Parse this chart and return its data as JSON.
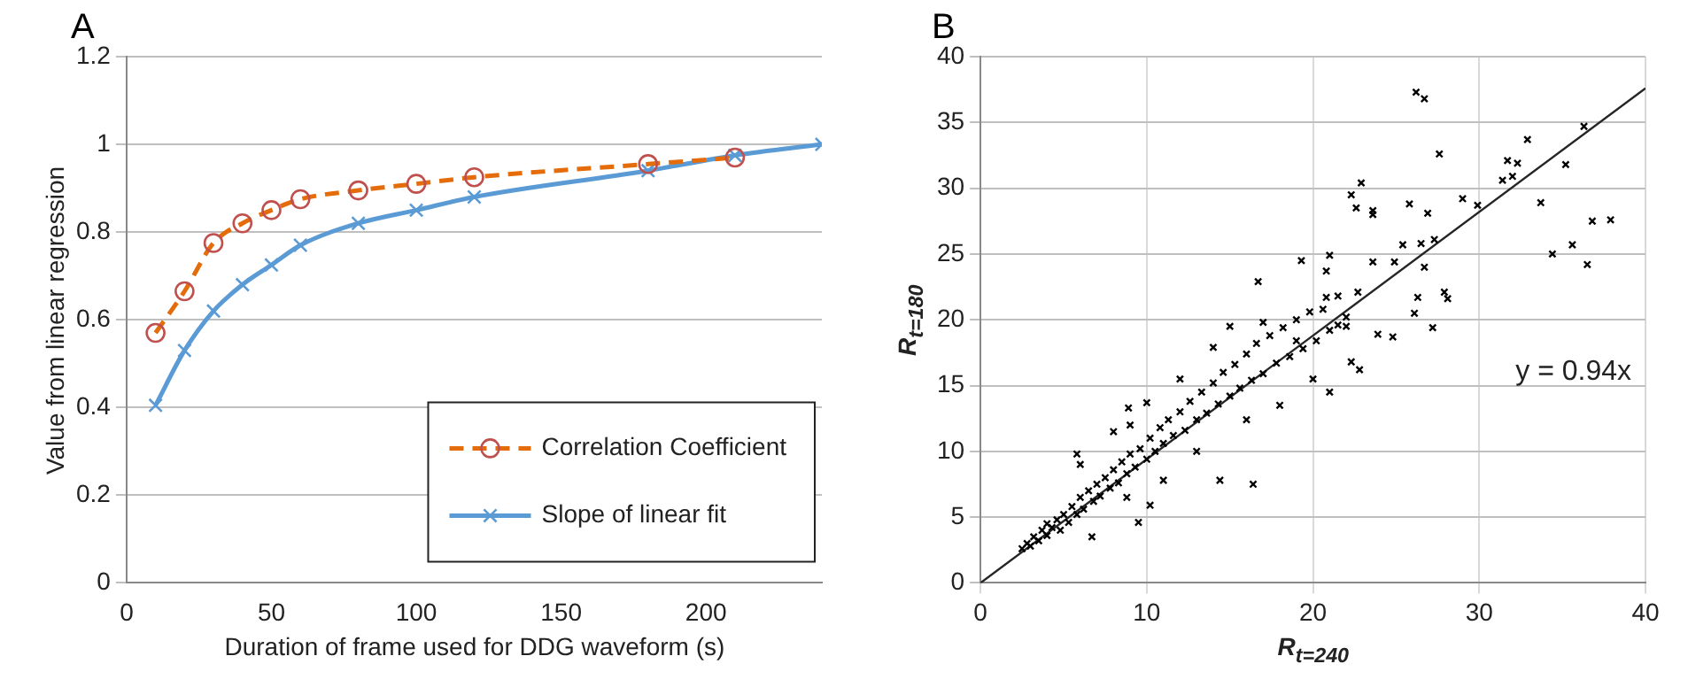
{
  "chart_data": [
    {
      "type": "line",
      "title": "A",
      "xlabel": "Duration of frame used for DDG waveform (s)",
      "ylabel": "Value from linear regression",
      "xlim": [
        0,
        240
      ],
      "xticks": [
        0,
        50,
        100,
        150,
        200
      ],
      "ylim": [
        0,
        1.2
      ],
      "yticks": [
        0,
        0.2,
        0.4,
        0.6,
        0.8,
        1,
        1.2
      ],
      "grid": "y",
      "legend": "bottom right",
      "series": [
        {
          "name": "Correlation Coefficient",
          "color": "#e46c0a",
          "marker": "circle",
          "line_style": "dashed",
          "x": [
            10,
            20,
            30,
            40,
            50,
            60,
            80,
            100,
            120,
            180,
            210
          ],
          "values": [
            0.57,
            0.665,
            0.775,
            0.82,
            0.85,
            0.875,
            0.895,
            0.91,
            0.925,
            0.955,
            0.97
          ]
        },
        {
          "name": "Slope of linear fit",
          "color": "#5b9bd5",
          "marker": "cross",
          "line_style": "solid",
          "x": [
            10,
            20,
            30,
            40,
            50,
            60,
            80,
            100,
            120,
            180,
            210,
            240
          ],
          "values": [
            0.405,
            0.53,
            0.62,
            0.68,
            0.725,
            0.77,
            0.82,
            0.85,
            0.88,
            0.94,
            0.975,
            1.0
          ]
        }
      ]
    },
    {
      "type": "scatter",
      "title": "B",
      "xlabel": "R$_{t=240}$",
      "ylabel": "R$_{t=180}$",
      "xlim": [
        0,
        40
      ],
      "xticks": [
        0,
        10,
        20,
        30,
        40
      ],
      "ylim": [
        0,
        40
      ],
      "yticks": [
        0,
        5,
        10,
        15,
        20,
        25,
        30,
        35,
        40
      ],
      "grid": true,
      "legend": false,
      "marker": "cross",
      "annotations": [
        "y = 0.94x"
      ],
      "series": [
        {
          "color": "#000000",
          "x": [
            26.2,
            26.7,
            27.6,
            32.9,
            36.3,
            31.7,
            32.3,
            35.2,
            31.4,
            32,
            33.7,
            29.9,
            29,
            37.9,
            36.8,
            35.6,
            34.4,
            36.5,
            22.9,
            22.3,
            22.6,
            23.6,
            23.6,
            25.8,
            26.9,
            27.3,
            25.4,
            26.5,
            26.7,
            21,
            19.3,
            20.8,
            23.6,
            24.9,
            26.3,
            27.9,
            28.1,
            27.2,
            26.1,
            23.9,
            24.8,
            16.7,
            20.8,
            21.5,
            22.7,
            22,
            21,
            22.8,
            22.3,
            14.4,
            16.4,
            9.5,
            6.7,
            10.2,
            8.9,
            5.8,
            8.8,
            2.5,
            2.8,
            3,
            3.2,
            3.5,
            3.7,
            4,
            4,
            4.3,
            4.6,
            4.8,
            5,
            5.3,
            5.5,
            5.8,
            6,
            6.2,
            6.5,
            6.8,
            7,
            7.2,
            7.5,
            7.8,
            8,
            8.3,
            8.5,
            8.8,
            9,
            9.3,
            9.6,
            10,
            10.2,
            10.5,
            10.8,
            11,
            11.3,
            11.6,
            12,
            12.3,
            12.6,
            13,
            13.3,
            13.6,
            14,
            14.3,
            14.6,
            15,
            15.3,
            15.6,
            16,
            16.3,
            16.6,
            17,
            17.4,
            17.8,
            18.2,
            18.6,
            19,
            19.4,
            19.8,
            20.2,
            20.6,
            21,
            21.5,
            22,
            8,
            10,
            12,
            14,
            15,
            11,
            13,
            16,
            18,
            20,
            6,
            9,
            17,
            19
          ],
          "values": [
            37.3,
            36.8,
            32.6,
            33.7,
            34.7,
            32.1,
            31.9,
            31.8,
            30.6,
            30.9,
            28.9,
            28.7,
            29.2,
            27.6,
            27.5,
            25.7,
            25,
            24.2,
            30.4,
            29.5,
            28.5,
            28.3,
            28,
            28.8,
            28.1,
            26.1,
            25.7,
            25.8,
            24,
            24.9,
            24.5,
            23.7,
            24.4,
            24.4,
            21.7,
            22.1,
            21.6,
            19.4,
            20.5,
            18.9,
            18.7,
            22.9,
            21.7,
            21.8,
            22.1,
            19.5,
            14.5,
            16.2,
            16.8,
            7.8,
            7.5,
            4.6,
            3.5,
            5.9,
            13.3,
            9.8,
            6.5,
            2.6,
            3,
            2.8,
            3.5,
            3.2,
            4,
            3.6,
            4.5,
            4.2,
            4.8,
            4,
            5.2,
            4.6,
            5.8,
            5.2,
            6.5,
            5.6,
            7,
            6.2,
            7.5,
            6.6,
            8,
            7.2,
            8.6,
            7.6,
            9.2,
            8.3,
            9.8,
            8.8,
            10.2,
            9.4,
            11,
            10,
            11.8,
            10.6,
            12.4,
            11.2,
            13,
            11.6,
            13.8,
            12.4,
            14.5,
            12.9,
            15.2,
            13.6,
            16,
            14.2,
            16.6,
            14.8,
            17.4,
            15.4,
            18.2,
            15.9,
            18.8,
            16.7,
            19.4,
            17.2,
            20,
            17.8,
            20.6,
            18.4,
            20.8,
            19.2,
            19.6,
            20.2,
            11.5,
            13.7,
            15.5,
            17.9,
            19.5,
            7.8,
            10,
            12.4,
            13.5,
            15.5,
            9,
            12,
            19.8,
            18.4
          ]
        },
        {
          "type": "line",
          "color": "#262626",
          "marker": "none",
          "line_style": "solid",
          "x": [
            0,
            40
          ],
          "values": [
            0,
            37.6
          ]
        }
      ]
    }
  ]
}
